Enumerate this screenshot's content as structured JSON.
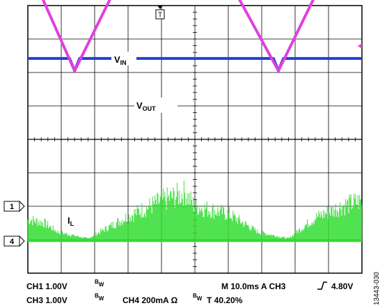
{
  "chart_data": {
    "type": "line",
    "grid": true,
    "time_axis": {
      "divisions": 10
    },
    "upper_panel": {
      "series": [
        {
          "name": "VIN",
          "color": "#e040e0",
          "x": [
            0,
            1.4,
            4.3,
            7.5,
            10
          ],
          "y": [
            5.2,
            2.05,
            7.9,
            2.05,
            7.15
          ]
        },
        {
          "name": "VOUT",
          "color": "#1f3fd8",
          "x": [
            0,
            1.25,
            1.4,
            1.55,
            7.35,
            7.5,
            7.65,
            10
          ],
          "y": [
            2.42,
            2.42,
            2.05,
            2.42,
            2.42,
            2.05,
            2.42,
            2.42
          ]
        }
      ],
      "labels": {
        "vin": "V",
        "vin_sub": "IN",
        "vout": "V",
        "vout_sub": "OUT"
      }
    },
    "lower_panel": {
      "series": [
        {
          "name": "IL",
          "color": "#33dd33",
          "baseline_y": 0,
          "x": [
            0,
            0.5,
            0.9,
            1.8,
            3.0,
            4.0,
            4.7,
            5.0,
            6.0,
            6.9,
            7.8,
            8.6,
            9.4,
            10
          ],
          "envelope": [
            0.85,
            0.7,
            0.35,
            0.1,
            0.95,
            1.55,
            1.85,
            1.35,
            1.05,
            0.35,
            0.1,
            0.9,
            1.35,
            1.55
          ]
        }
      ],
      "labels": {
        "il": "I",
        "il_sub": "L"
      }
    },
    "channel_markers": [
      "1",
      "4"
    ],
    "trigger_marker": "T",
    "readout": {
      "line1_left": "CH1 1.00V",
      "line1_bw": "W",
      "line1_bw_pre": "B",
      "line1_right": "M 10.0ms  A  CH3",
      "line1_trig": "4.80V",
      "line2_left": "CH3 1.00V",
      "line2_bw": "W",
      "line2_bw_pre": "B",
      "line2_mid": "CH4  200mA Ω",
      "line2_mid_bw_pre": "B",
      "line2_mid_bw": "W",
      "line2_right": "T  40.20%"
    },
    "figure_id": "13443-030"
  }
}
